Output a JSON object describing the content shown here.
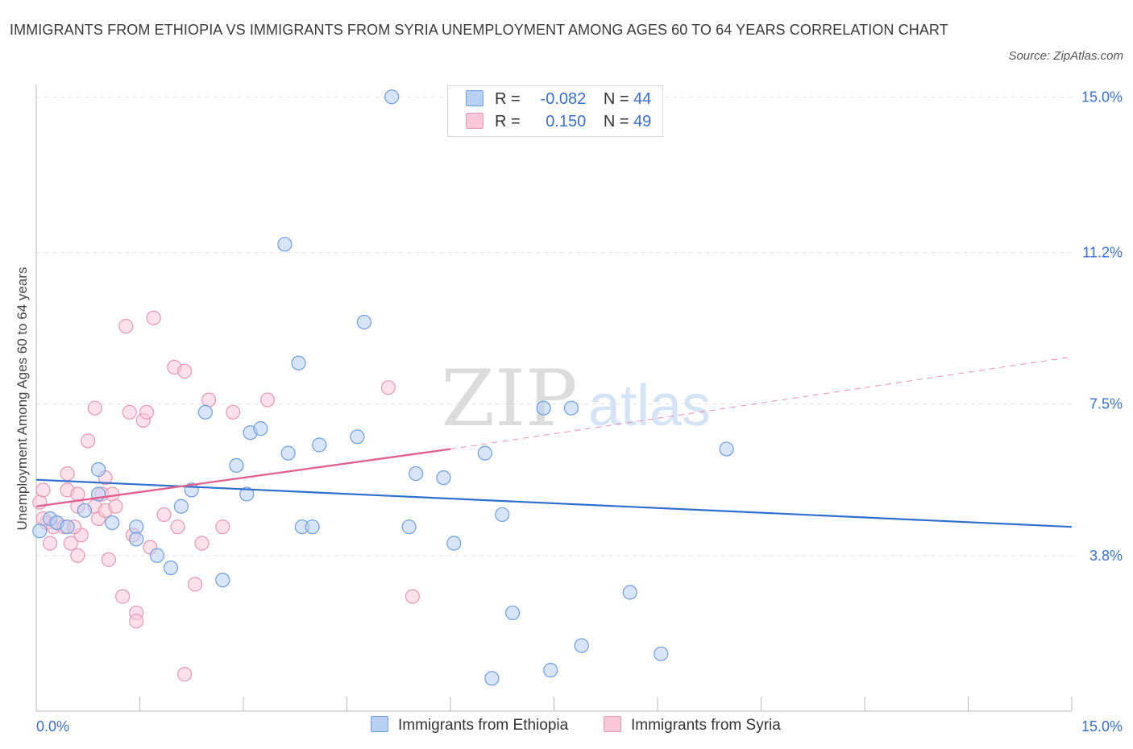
{
  "title": "IMMIGRANTS FROM ETHIOPIA VS IMMIGRANTS FROM SYRIA UNEMPLOYMENT AMONG AGES 60 TO 64 YEARS CORRELATION CHART",
  "source": "Source: ZipAtlas.com",
  "watermark": {
    "zip": "ZIP",
    "atlas": "atlas"
  },
  "legend": {
    "r_label": "R =",
    "n_label": "N =",
    "ethiopia": {
      "r": "-0.082",
      "n": "44"
    },
    "syria": {
      "r": "0.150",
      "n": "49"
    }
  },
  "bottom_legend": {
    "ethiopia": "Immigrants from Ethiopia",
    "syria": "Immigrants from Syria"
  },
  "colors": {
    "blue_fill": "#b8d0f4",
    "blue_stroke": "#6f9fe0",
    "blue_line": "#2f6fd0",
    "pink_fill": "#f9c8d8",
    "pink_stroke": "#e898b3",
    "pink_line": "#e0648e",
    "tick_label": "#3a6fd0"
  },
  "chart_data": {
    "type": "scatter",
    "title": "IMMIGRANTS FROM ETHIOPIA VS IMMIGRANTS FROM SYRIA UNEMPLOYMENT AMONG AGES 60 TO 64 YEARS CORRELATION CHART",
    "xlabel": "",
    "ylabel": "Unemployment Among Ages 60 to 64 years",
    "xlim": [
      0,
      15
    ],
    "ylim": [
      0,
      15.3
    ],
    "x_tick_labels": [
      "0.0%",
      "15.0%"
    ],
    "y_ticks": [
      3.8,
      7.5,
      11.2,
      15.0
    ],
    "y_tick_labels": [
      "3.8%",
      "7.5%",
      "11.2%",
      "15.0%"
    ],
    "grid": true,
    "legend_position": "top-center",
    "series": [
      {
        "name": "Immigrants from Ethiopia",
        "r": -0.082,
        "n": 44,
        "points": [
          [
            0.05,
            4.4
          ],
          [
            0.2,
            4.7
          ],
          [
            0.3,
            4.6
          ],
          [
            0.45,
            4.5
          ],
          [
            0.7,
            4.9
          ],
          [
            0.9,
            5.3
          ],
          [
            0.9,
            5.9
          ],
          [
            1.1,
            4.6
          ],
          [
            1.45,
            4.5
          ],
          [
            1.45,
            4.2
          ],
          [
            1.75,
            3.8
          ],
          [
            1.95,
            3.5
          ],
          [
            2.1,
            5.0
          ],
          [
            2.25,
            5.4
          ],
          [
            2.45,
            7.3
          ],
          [
            2.7,
            3.2
          ],
          [
            2.9,
            6.0
          ],
          [
            3.05,
            5.3
          ],
          [
            3.1,
            6.8
          ],
          [
            3.25,
            6.9
          ],
          [
            3.65,
            6.3
          ],
          [
            3.6,
            11.4
          ],
          [
            3.8,
            8.5
          ],
          [
            3.85,
            4.5
          ],
          [
            4.0,
            4.5
          ],
          [
            4.1,
            6.5
          ],
          [
            4.65,
            6.7
          ],
          [
            4.75,
            9.5
          ],
          [
            5.15,
            15.0
          ],
          [
            5.4,
            4.5
          ],
          [
            5.5,
            5.8
          ],
          [
            5.9,
            5.7
          ],
          [
            6.05,
            4.1
          ],
          [
            6.5,
            6.3
          ],
          [
            6.6,
            0.8
          ],
          [
            6.75,
            4.8
          ],
          [
            6.9,
            2.4
          ],
          [
            7.35,
            7.4
          ],
          [
            7.45,
            1.0
          ],
          [
            7.75,
            7.4
          ],
          [
            7.9,
            1.6
          ],
          [
            8.6,
            2.9
          ],
          [
            9.05,
            1.4
          ],
          [
            10.0,
            6.4
          ]
        ],
        "trend": {
          "x": [
            0,
            15
          ],
          "y": [
            5.65,
            4.5
          ]
        }
      },
      {
        "name": "Immigrants from Syria",
        "r": 0.15,
        "n": 49,
        "points": [
          [
            0.05,
            5.1
          ],
          [
            0.1,
            5.4
          ],
          [
            0.15,
            4.6
          ],
          [
            0.2,
            4.1
          ],
          [
            0.25,
            4.5
          ],
          [
            0.3,
            4.6
          ],
          [
            0.4,
            4.5
          ],
          [
            0.45,
            5.8
          ],
          [
            0.45,
            5.4
          ],
          [
            0.5,
            4.1
          ],
          [
            0.6,
            5.0
          ],
          [
            0.6,
            5.3
          ],
          [
            0.6,
            3.8
          ],
          [
            0.65,
            4.3
          ],
          [
            0.75,
            6.6
          ],
          [
            0.85,
            5.0
          ],
          [
            0.85,
            7.4
          ],
          [
            0.9,
            4.7
          ],
          [
            0.95,
            5.3
          ],
          [
            1.0,
            4.9
          ],
          [
            1.0,
            5.7
          ],
          [
            1.05,
            3.7
          ],
          [
            1.1,
            5.3
          ],
          [
            1.25,
            2.8
          ],
          [
            1.3,
            9.4
          ],
          [
            1.35,
            7.3
          ],
          [
            1.4,
            4.3
          ],
          [
            1.45,
            2.4
          ],
          [
            1.45,
            2.2
          ],
          [
            1.55,
            7.1
          ],
          [
            1.6,
            7.3
          ],
          [
            1.65,
            4.0
          ],
          [
            1.7,
            9.6
          ],
          [
            1.85,
            4.8
          ],
          [
            2.0,
            8.4
          ],
          [
            2.05,
            4.5
          ],
          [
            2.15,
            8.3
          ],
          [
            2.15,
            0.9
          ],
          [
            2.3,
            3.1
          ],
          [
            2.4,
            4.1
          ],
          [
            2.5,
            7.6
          ],
          [
            2.7,
            4.5
          ],
          [
            2.85,
            7.3
          ],
          [
            3.35,
            7.6
          ],
          [
            5.1,
            7.9
          ],
          [
            5.45,
            2.8
          ],
          [
            0.1,
            4.7
          ],
          [
            0.55,
            4.5
          ],
          [
            1.15,
            5.0
          ]
        ],
        "trend": {
          "x": [
            0,
            6.0
          ],
          "y": [
            5.0,
            6.4
          ]
        },
        "trend_extension": {
          "x": [
            6.0,
            15
          ],
          "y": [
            6.4,
            8.65
          ]
        }
      }
    ]
  }
}
